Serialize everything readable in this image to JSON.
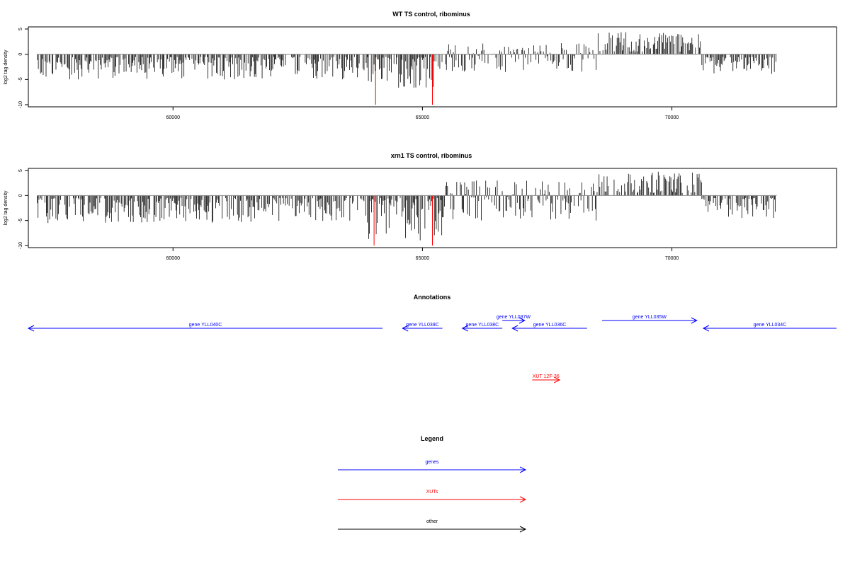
{
  "chart_data": [
    {
      "type": "bar",
      "title": "WT TS control, ribominus",
      "ylabel": "log2 tag density",
      "xlabel": "",
      "xlim": [
        57100,
        73300
      ],
      "ylim": [
        -10,
        5
      ],
      "xticks": [
        "60000",
        "65000",
        "70000"
      ],
      "yticks": [
        "5",
        "0",
        "-5",
        "-10"
      ],
      "grid": false,
      "description_of_values": "per-position log2 tag density along chromosome coordinate; values listed as regional segments",
      "segments": [
        {
          "x": [
            57280,
            63900
          ],
          "values_range": [
            -5,
            -0.5
          ],
          "typical": -2.3
        },
        {
          "x": [
            63900,
            65400
          ],
          "values_range": [
            -7,
            -0.5
          ],
          "typical": -3.5
        },
        {
          "x": [
            65400,
            68500
          ],
          "values_range": [
            -3.5,
            2.3
          ],
          "typical": -1.0
        },
        {
          "x": [
            68500,
            70600
          ],
          "values_range": [
            0.5,
            4.5
          ],
          "typical": 1.8
        },
        {
          "x": [
            70600,
            72100
          ],
          "values_range": [
            -4,
            -0.5
          ],
          "typical": -2.0
        }
      ],
      "markers": [
        {
          "x": 64060,
          "y": -10,
          "color": "#ff0000"
        },
        {
          "x": 65200,
          "y": -10,
          "color": "#ff0000"
        }
      ]
    },
    {
      "type": "bar",
      "title": "xrn1 TS control, ribominus",
      "ylabel": "log2 tag density",
      "xlabel": "",
      "xlim": [
        57100,
        73300
      ],
      "ylim": [
        -10,
        5
      ],
      "xticks": [
        "60000",
        "65000",
        "70000"
      ],
      "yticks": [
        "5",
        "0",
        "-5",
        "-10"
      ],
      "grid": false,
      "segments": [
        {
          "x": [
            57280,
            63900
          ],
          "values_range": [
            -5.5,
            -0.5
          ],
          "typical": -2.6
        },
        {
          "x": [
            63900,
            65400
          ],
          "values_range": [
            -9,
            -0.5
          ],
          "typical": -5.0
        },
        {
          "x": [
            65400,
            68500
          ],
          "values_range": [
            -5,
            3
          ],
          "typical": -2.0
        },
        {
          "x": [
            68500,
            70600
          ],
          "values_range": [
            0.5,
            4.8
          ],
          "typical": 2.3
        },
        {
          "x": [
            70600,
            72100
          ],
          "values_range": [
            -4.5,
            -0.5
          ],
          "typical": -2.3
        }
      ],
      "markers": [
        {
          "x": 64030,
          "y": -10,
          "color": "#ff0000"
        },
        {
          "x": 65200,
          "y": -10,
          "color": "#ff0000"
        }
      ]
    }
  ],
  "annotations": {
    "title": "Annotations",
    "genes_color": "#0000ff",
    "xut_color": "#ff0000",
    "genes": [
      {
        "label": "gene YLL040C",
        "start": 57100,
        "end": 64200,
        "strand": "-"
      },
      {
        "label": "gene YLL039C",
        "start": 64600,
        "end": 65400,
        "strand": "-"
      },
      {
        "label": "gene YLL038C",
        "start": 65800,
        "end": 66600,
        "strand": "-"
      },
      {
        "label": "gene YLL037W",
        "start": 66600,
        "end": 67050,
        "strand": "+"
      },
      {
        "label": "gene YLL036C",
        "start": 66800,
        "end": 68300,
        "strand": "-"
      },
      {
        "label": "gene YLL035W",
        "start": 68600,
        "end": 70500,
        "strand": "+"
      },
      {
        "label": "gene YLL034C",
        "start": 70630,
        "end": 73300,
        "strand": "-"
      }
    ],
    "xuts": [
      {
        "label": "XUT 12F-36",
        "start": 67200,
        "end": 67750,
        "strand": "+"
      }
    ]
  },
  "legend": {
    "title": "Legend",
    "items": [
      {
        "label": "genes",
        "color": "#0000ff"
      },
      {
        "label": "XUTs",
        "color": "#ff0000"
      },
      {
        "label": "other",
        "color": "#000000"
      }
    ]
  }
}
